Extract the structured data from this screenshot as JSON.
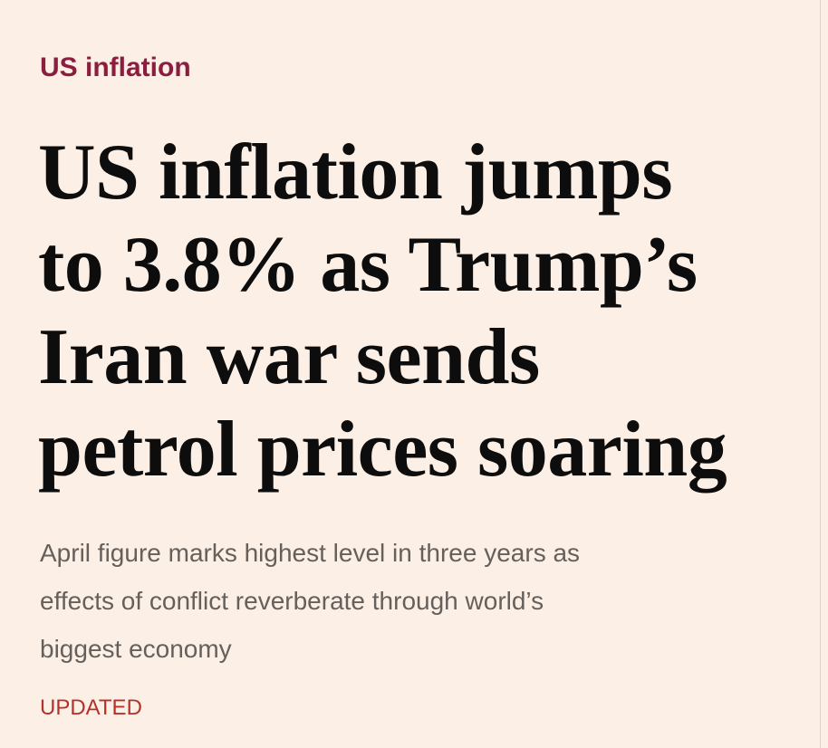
{
  "article": {
    "topic": "US inflation",
    "headline": [
      "US inflation jumps",
      "to 3.8% as Trump’s",
      "Iran war sends",
      "petrol prices soaring"
    ],
    "standfirst": [
      "April figure marks highest level in three years as",
      "effects of conflict reverberate through world’s",
      "biggest economy"
    ],
    "status": "UPDATED"
  }
}
